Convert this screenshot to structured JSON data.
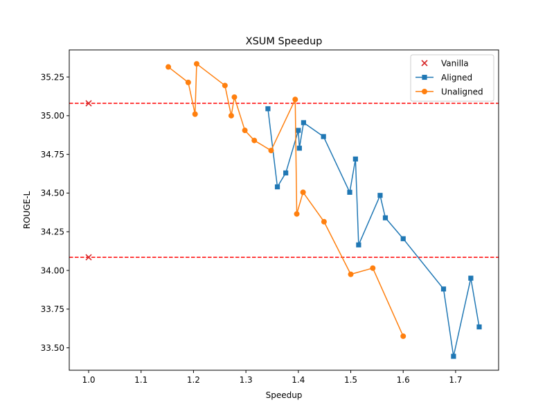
{
  "chart_data": {
    "type": "line",
    "title": "XSUM Speedup",
    "xlabel": "Speedup",
    "ylabel": "ROUGE-L",
    "xlim": [
      0.963,
      1.782
    ],
    "ylim": [
      33.355,
      35.425
    ],
    "xticks": [
      1.0,
      1.1,
      1.2,
      1.3,
      1.4,
      1.5,
      1.6,
      1.7
    ],
    "xtick_labels": [
      "1.0",
      "1.1",
      "1.2",
      "1.3",
      "1.4",
      "1.5",
      "1.6",
      "1.7"
    ],
    "yticks": [
      33.5,
      33.75,
      34.0,
      34.25,
      34.5,
      34.75,
      35.0,
      35.25
    ],
    "ytick_labels": [
      "33.50",
      "33.75",
      "34.00",
      "34.25",
      "34.50",
      "34.75",
      "35.00",
      "35.25"
    ],
    "grid": false,
    "legend_position": "top-right",
    "hlines": [
      {
        "y": 35.08,
        "color": "#ff0000",
        "style": "dashed"
      },
      {
        "y": 34.085,
        "color": "#ff0000",
        "style": "dashed"
      }
    ],
    "series": [
      {
        "name": "Vanilla",
        "kind": "scatter",
        "marker": "x",
        "color": "#d62728",
        "x": [
          1.0,
          1.0
        ],
        "y": [
          35.08,
          34.085
        ]
      },
      {
        "name": "Aligned",
        "kind": "line",
        "marker": "square",
        "color": "#1f77b4",
        "x": [
          1.342,
          1.36,
          1.376,
          1.4,
          1.402,
          1.41,
          1.448,
          1.498,
          1.509,
          1.515,
          1.556,
          1.566,
          1.6,
          1.677,
          1.696,
          1.729,
          1.745
        ],
        "y": [
          35.045,
          34.54,
          34.63,
          34.905,
          34.79,
          34.955,
          34.865,
          34.505,
          34.72,
          34.165,
          34.485,
          34.34,
          34.205,
          33.88,
          33.445,
          33.95,
          33.635
        ]
      },
      {
        "name": "Unaligned",
        "kind": "line",
        "marker": "circle",
        "color": "#ff7f0e",
        "x": [
          1.152,
          1.19,
          1.203,
          1.206,
          1.26,
          1.272,
          1.278,
          1.298,
          1.316,
          1.348,
          1.394,
          1.397,
          1.409,
          1.449,
          1.5,
          1.542,
          1.6
        ],
        "y": [
          35.315,
          35.215,
          35.01,
          35.335,
          35.195,
          35.0,
          35.12,
          34.905,
          34.84,
          34.775,
          35.105,
          34.365,
          34.505,
          34.315,
          33.975,
          34.015,
          33.575
        ]
      }
    ]
  }
}
